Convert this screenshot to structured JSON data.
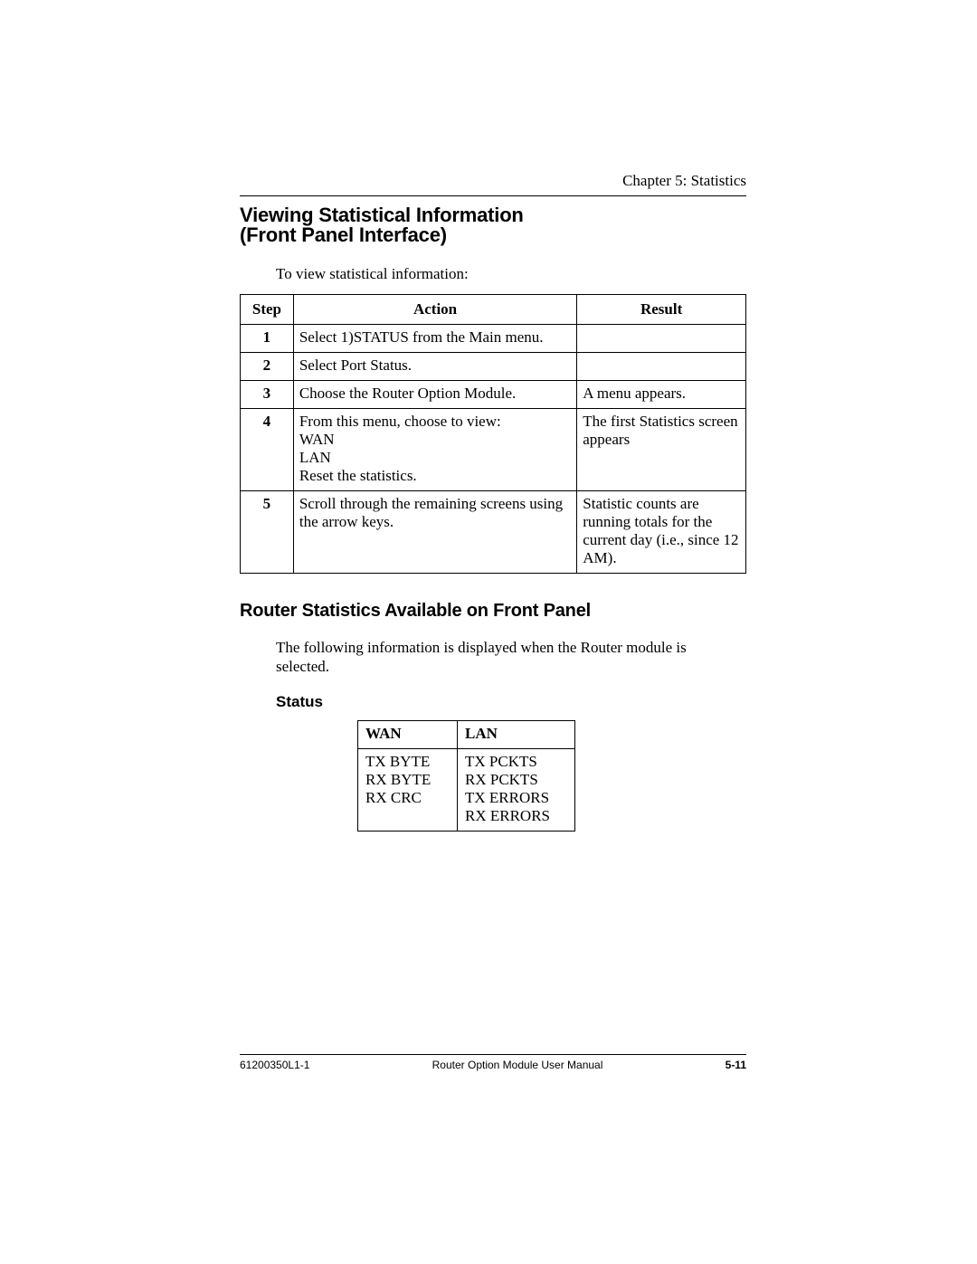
{
  "chapter_label": "Chapter 5:  Statistics",
  "h1_line1": "Viewing Statistical Information",
  "h1_line2": "(Front Panel Interface)",
  "intro": "To view statistical information:",
  "steps_table": {
    "columns": [
      "Step",
      "Action",
      "Result"
    ],
    "rows": [
      {
        "step": "1",
        "action": "Select 1)STATUS from the Main menu.",
        "result": ""
      },
      {
        "step": "2",
        "action": "Select Port Status.",
        "result": ""
      },
      {
        "step": "3",
        "action": "Choose the Router Option Module.",
        "result": "A menu appears."
      },
      {
        "step": "4",
        "action": "From this menu, choose to view:\nWAN\nLAN\nReset the statistics.",
        "result": "The first Statistics screen appears"
      },
      {
        "step": "5",
        "action": "Scroll through the remaining screens using the arrow keys.",
        "result": "Statistic counts are running totals for the current day (i.e., since 12 AM)."
      }
    ]
  },
  "h2": "Router Statistics Available on Front Panel",
  "body_text": "The following information is displayed when the Router module is selected.",
  "h3": "Status",
  "status_table": {
    "columns": [
      "WAN",
      "LAN"
    ],
    "rows": [
      {
        "wan": "TX BYTE\nRX BYTE\nRX CRC",
        "lan": "TX PCKTS\nRX PCKTS\nTX ERRORS\nRX ERRORS"
      }
    ]
  },
  "footer": {
    "left": "61200350L1-1",
    "center": "Router Option Module User Manual",
    "right": "5-11"
  },
  "colors": {
    "text": "#000000",
    "background": "#ffffff",
    "rule": "#000000"
  }
}
